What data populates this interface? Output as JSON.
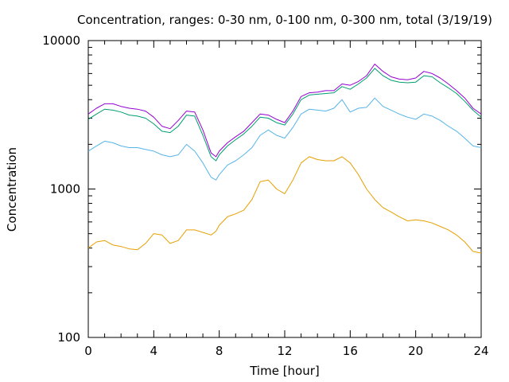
{
  "chart_data": {
    "type": "line",
    "title": "Concentration, ranges: 0-30 nm, 0-100 nm, 0-300 nm, total (3/19/19)",
    "xlabel": "Time [hour]",
    "ylabel": "Concentration",
    "xlim": [
      0,
      24
    ],
    "ylim": [
      100,
      10000
    ],
    "yscale": "log",
    "grid": false,
    "legend": "none",
    "x_ticks": [
      "0",
      "4",
      "8",
      "12",
      "16",
      "20",
      "24"
    ],
    "y_ticks": [
      "100",
      "1000",
      "10000"
    ],
    "x": [
      0,
      0.5,
      1,
      1.5,
      2,
      2.5,
      3,
      3.5,
      4,
      4.5,
      5,
      5.5,
      6,
      6.5,
      7,
      7.5,
      7.8,
      8,
      8.5,
      9,
      9.5,
      10,
      10.5,
      11,
      11.5,
      12,
      12.5,
      13,
      13.5,
      14,
      14.5,
      15,
      15.5,
      16,
      16.5,
      17,
      17.5,
      18,
      18.5,
      19,
      19.5,
      20,
      20.5,
      21,
      21.5,
      22,
      22.5,
      23,
      23.5,
      24
    ],
    "series": [
      {
        "color": "#e69f00",
        "values": [
          400,
          440,
          450,
          420,
          410,
          395,
          390,
          430,
          500,
          490,
          430,
          450,
          530,
          530,
          510,
          490,
          520,
          570,
          650,
          680,
          720,
          850,
          1120,
          1150,
          1000,
          930,
          1150,
          1500,
          1650,
          1580,
          1550,
          1550,
          1650,
          1500,
          1250,
          1000,
          850,
          750,
          700,
          650,
          610,
          620,
          610,
          590,
          560,
          530,
          490,
          440,
          380,
          370
        ]
      },
      {
        "color": "#56b4e9",
        "values": [
          1800,
          1950,
          2100,
          2050,
          1950,
          1900,
          1900,
          1850,
          1800,
          1700,
          1650,
          1700,
          2000,
          1800,
          1500,
          1200,
          1150,
          1250,
          1450,
          1550,
          1700,
          1900,
          2300,
          2500,
          2300,
          2200,
          2600,
          3200,
          3450,
          3400,
          3350,
          3500,
          4000,
          3300,
          3500,
          3550,
          4100,
          3600,
          3400,
          3200,
          3050,
          2950,
          3200,
          3100,
          2900,
          2650,
          2450,
          2200,
          1950,
          1900
        ]
      },
      {
        "color": "#009e73",
        "values": [
          2950,
          3200,
          3450,
          3400,
          3300,
          3150,
          3100,
          3000,
          2750,
          2450,
          2400,
          2650,
          3150,
          3100,
          2300,
          1650,
          1550,
          1700,
          1950,
          2150,
          2350,
          2650,
          3050,
          3000,
          2800,
          2700,
          3200,
          4000,
          4300,
          4350,
          4400,
          4450,
          4900,
          4700,
          5100,
          5600,
          6500,
          5800,
          5400,
          5250,
          5200,
          5250,
          5800,
          5700,
          5200,
          4800,
          4400,
          3900,
          3400,
          3050
        ]
      },
      {
        "color": "#9400d3",
        "values": [
          3200,
          3500,
          3750,
          3750,
          3600,
          3500,
          3450,
          3350,
          3050,
          2650,
          2550,
          2900,
          3350,
          3300,
          2500,
          1750,
          1650,
          1800,
          2050,
          2250,
          2450,
          2800,
          3200,
          3150,
          2950,
          2800,
          3350,
          4200,
          4450,
          4500,
          4600,
          4600,
          5100,
          5000,
          5300,
          5800,
          6950,
          6200,
          5700,
          5500,
          5450,
          5600,
          6200,
          6000,
          5600,
          5100,
          4600,
          4100,
          3500,
          3200
        ]
      }
    ]
  }
}
